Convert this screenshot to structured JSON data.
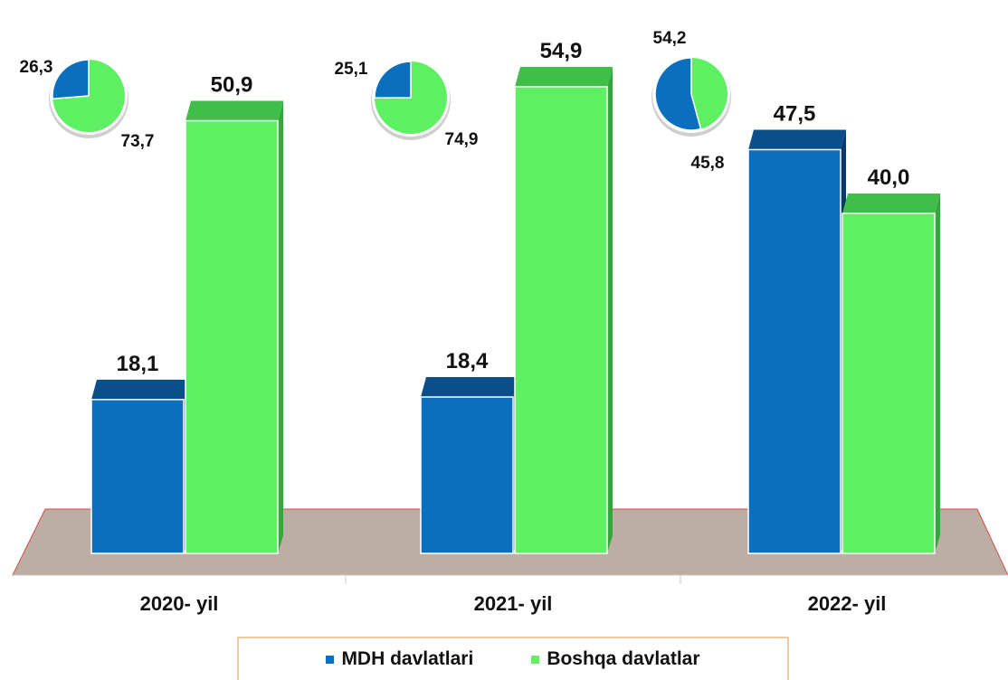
{
  "chart_data": {
    "type": "bar",
    "categories": [
      "2020- yil",
      "2021- yil",
      "2022- yil"
    ],
    "series": [
      {
        "name": "MDH davlatlari",
        "values": [
          18.1,
          18.4,
          47.5
        ],
        "labels": [
          "18,1",
          "18,4",
          "47,5"
        ],
        "color": "#0b6fbf"
      },
      {
        "name": "Boshqa davlatlar",
        "values": [
          50.9,
          54.9,
          40.0
        ],
        "labels": [
          "50,9",
          "54,9",
          "40,0"
        ],
        "color": "#5ef062"
      }
    ],
    "ylim": [
      0,
      60
    ],
    "pies": [
      {
        "category": "2020- yil",
        "values": [
          26.3,
          73.7
        ],
        "labels": [
          "26,3",
          "73,7"
        ]
      },
      {
        "category": "2021- yil",
        "values": [
          25.1,
          74.9
        ],
        "labels": [
          "25,1",
          "74,9"
        ]
      },
      {
        "category": "2022- yil",
        "values": [
          54.2,
          45.8
        ],
        "labels": [
          "54,2",
          "45,8"
        ]
      }
    ],
    "legend": [
      "MDH davlatlari",
      "Boshqa davlatlar"
    ],
    "legend_position": "bottom"
  },
  "colors": {
    "mdh": "#0b6fbf",
    "mdh_top": "#0a4f8a",
    "mdh_side": "#083b66",
    "other": "#5ef062",
    "other_top": "#3fbf4a",
    "other_side": "#33a63c",
    "floor": "#bcaea2",
    "floor_edge": "#d24a4a"
  }
}
